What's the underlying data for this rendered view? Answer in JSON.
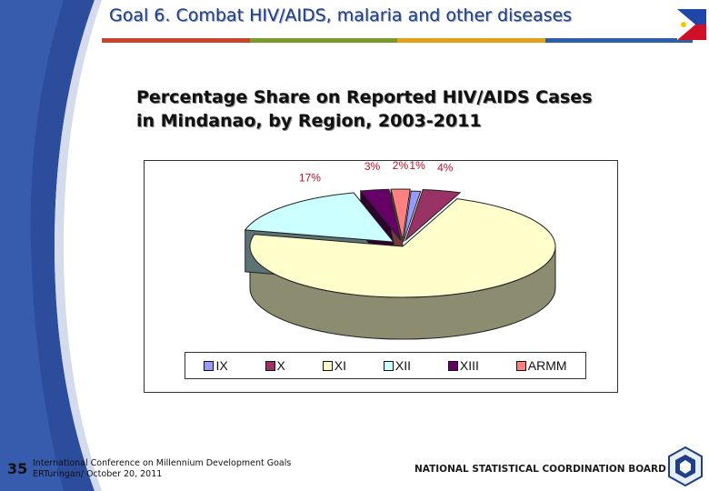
{
  "header": {
    "title": "Goal 6. Combat HIV/AIDS, malaria and other diseases"
  },
  "colors": {
    "bar": [
      "#c8442a",
      "#7b9a2c",
      "#e1a21a",
      "#2d5fa8"
    ],
    "accent": "#1f3f86"
  },
  "chart_data": {
    "type": "pie",
    "title_line1": "Percentage Share on Reported HIV/AIDS Cases",
    "title_line2": "in Mindanao, by Region, 2003-2011",
    "categories": [
      "IX",
      "X",
      "XI",
      "XII",
      "XIII",
      "ARMM"
    ],
    "values": [
      1,
      4,
      73,
      17,
      3,
      2
    ],
    "labels": [
      "1%",
      "4%",
      "",
      "17%",
      "3%",
      "2%"
    ],
    "colors": [
      "#9999ff",
      "#993366",
      "#ffffcc",
      "#ccffff",
      "#660066",
      "#ff8080"
    ],
    "legend_position": "bottom"
  },
  "footer": {
    "page_number": "35",
    "conference": "International Conference on Millennium Development Goals",
    "author_date": "ERTuringan/ October 20, 2011",
    "organization": "NATIONAL STATISTICAL COORDINATION BOARD"
  }
}
